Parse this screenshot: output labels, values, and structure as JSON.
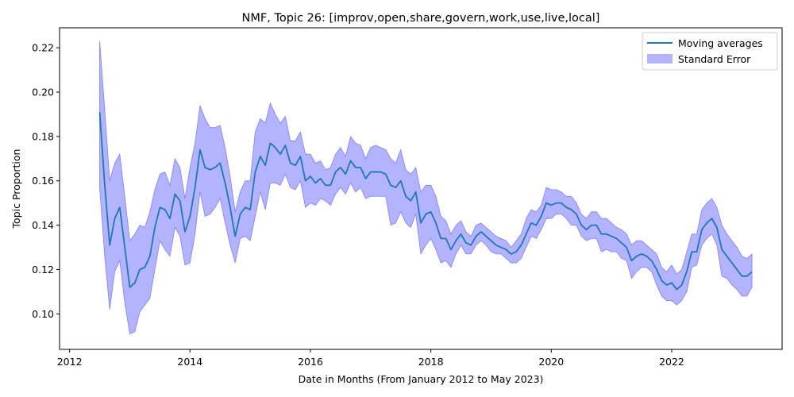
{
  "chart_data": {
    "type": "line",
    "title": "NMF, Topic 26: [improv,open,share,govern,work,use,live,local]",
    "xlabel": "Date in Months (From January 2012 to May 2023)",
    "ylabel": "Topic Proportion",
    "xlim": [
      "2011-11",
      "2023-11"
    ],
    "ylim": [
      0.084,
      0.229
    ],
    "x_ticks": [
      "2012",
      "2014",
      "2016",
      "2018",
      "2020",
      "2022"
    ],
    "y_ticks": [
      "0.10",
      "0.12",
      "0.14",
      "0.16",
      "0.18",
      "0.20",
      "0.22"
    ],
    "grid": false,
    "legend": {
      "position": "top-right",
      "entries": [
        "Moving averages",
        "Standard Error"
      ]
    },
    "colors": {
      "line": "#1f77b4",
      "band": "#b3b3ff",
      "band_edge": "#8080ff"
    },
    "series": [
      {
        "name": "Moving averages",
        "x": [
          "2012-07",
          "2012-08",
          "2012-09",
          "2012-10",
          "2012-11",
          "2012-12",
          "2013-01",
          "2013-02",
          "2013-03",
          "2013-04",
          "2013-05",
          "2013-06",
          "2013-07",
          "2013-08",
          "2013-09",
          "2013-10",
          "2013-11",
          "2013-12",
          "2014-01",
          "2014-02",
          "2014-03",
          "2014-04",
          "2014-05",
          "2014-06",
          "2014-07",
          "2014-08",
          "2014-09",
          "2014-10",
          "2014-11",
          "2014-12",
          "2015-01",
          "2015-02",
          "2015-03",
          "2015-04",
          "2015-05",
          "2015-06",
          "2015-07",
          "2015-08",
          "2015-09",
          "2015-10",
          "2015-11",
          "2015-12",
          "2016-01",
          "2016-02",
          "2016-03",
          "2016-04",
          "2016-05",
          "2016-06",
          "2016-07",
          "2016-08",
          "2016-09",
          "2016-10",
          "2016-11",
          "2016-12",
          "2017-01",
          "2017-02",
          "2017-03",
          "2017-04",
          "2017-05",
          "2017-06",
          "2017-07",
          "2017-08",
          "2017-09",
          "2017-10",
          "2017-11",
          "2017-12",
          "2018-01",
          "2018-02",
          "2018-03",
          "2018-04",
          "2018-05",
          "2018-06",
          "2018-07",
          "2018-08",
          "2018-09",
          "2018-10",
          "2018-11",
          "2018-12",
          "2019-01",
          "2019-02",
          "2019-03",
          "2019-04",
          "2019-05",
          "2019-06",
          "2019-07",
          "2019-08",
          "2019-09",
          "2019-10",
          "2019-11",
          "2019-12",
          "2020-01",
          "2020-02",
          "2020-03",
          "2020-04",
          "2020-05",
          "2020-06",
          "2020-07",
          "2020-08",
          "2020-09",
          "2020-10",
          "2020-11",
          "2020-12",
          "2021-01",
          "2021-02",
          "2021-03",
          "2021-04",
          "2021-05",
          "2021-06",
          "2021-07",
          "2021-08",
          "2021-09",
          "2021-10",
          "2021-11",
          "2021-12",
          "2022-01",
          "2022-02",
          "2022-03",
          "2022-04",
          "2022-05",
          "2022-06",
          "2022-07",
          "2022-08",
          "2022-09",
          "2022-10",
          "2022-11",
          "2022-12",
          "2023-01",
          "2023-02",
          "2023-03",
          "2023-04",
          "2023-05"
        ],
        "values": [
          0.191,
          0.158,
          0.131,
          0.143,
          0.148,
          0.13,
          0.112,
          0.114,
          0.12,
          0.121,
          0.126,
          0.139,
          0.148,
          0.147,
          0.143,
          0.154,
          0.151,
          0.137,
          0.144,
          0.157,
          0.174,
          0.166,
          0.165,
          0.166,
          0.168,
          0.159,
          0.148,
          0.135,
          0.145,
          0.148,
          0.147,
          0.164,
          0.171,
          0.167,
          0.177,
          0.175,
          0.172,
          0.176,
          0.168,
          0.167,
          0.171,
          0.16,
          0.162,
          0.159,
          0.161,
          0.158,
          0.158,
          0.164,
          0.166,
          0.163,
          0.169,
          0.166,
          0.166,
          0.161,
          0.164,
          0.164,
          0.164,
          0.163,
          0.158,
          0.157,
          0.16,
          0.153,
          0.151,
          0.155,
          0.141,
          0.145,
          0.146,
          0.141,
          0.134,
          0.134,
          0.129,
          0.133,
          0.136,
          0.132,
          0.131,
          0.135,
          0.137,
          0.135,
          0.133,
          0.131,
          0.13,
          0.129,
          0.127,
          0.128,
          0.131,
          0.136,
          0.141,
          0.14,
          0.144,
          0.15,
          0.149,
          0.15,
          0.15,
          0.148,
          0.147,
          0.145,
          0.14,
          0.138,
          0.14,
          0.14,
          0.136,
          0.136,
          0.135,
          0.134,
          0.132,
          0.13,
          0.124,
          0.126,
          0.127,
          0.126,
          0.124,
          0.12,
          0.115,
          0.113,
          0.114,
          0.111,
          0.113,
          0.119,
          0.128,
          0.128,
          0.138,
          0.141,
          0.143,
          0.139,
          0.129,
          0.126,
          0.123,
          0.12,
          0.117,
          0.117,
          0.119
        ],
        "lower": [
          0.157,
          0.126,
          0.102,
          0.119,
          0.124,
          0.105,
          0.091,
          0.092,
          0.101,
          0.104,
          0.107,
          0.12,
          0.133,
          0.129,
          0.126,
          0.139,
          0.135,
          0.122,
          0.123,
          0.136,
          0.155,
          0.144,
          0.145,
          0.148,
          0.152,
          0.141,
          0.131,
          0.123,
          0.134,
          0.135,
          0.133,
          0.144,
          0.155,
          0.147,
          0.159,
          0.159,
          0.158,
          0.163,
          0.157,
          0.156,
          0.16,
          0.148,
          0.15,
          0.149,
          0.152,
          0.151,
          0.149,
          0.154,
          0.157,
          0.154,
          0.159,
          0.155,
          0.157,
          0.152,
          0.153,
          0.153,
          0.153,
          0.153,
          0.14,
          0.141,
          0.146,
          0.141,
          0.139,
          0.145,
          0.127,
          0.131,
          0.134,
          0.129,
          0.123,
          0.124,
          0.121,
          0.127,
          0.131,
          0.127,
          0.127,
          0.131,
          0.133,
          0.131,
          0.128,
          0.127,
          0.127,
          0.125,
          0.123,
          0.123,
          0.125,
          0.13,
          0.135,
          0.134,
          0.138,
          0.143,
          0.143,
          0.145,
          0.145,
          0.143,
          0.14,
          0.14,
          0.135,
          0.133,
          0.134,
          0.134,
          0.128,
          0.129,
          0.128,
          0.128,
          0.125,
          0.124,
          0.116,
          0.119,
          0.121,
          0.121,
          0.119,
          0.113,
          0.108,
          0.106,
          0.106,
          0.104,
          0.106,
          0.11,
          0.121,
          0.122,
          0.131,
          0.134,
          0.136,
          0.131,
          0.117,
          0.116,
          0.113,
          0.111,
          0.108,
          0.108,
          0.112
        ],
        "upper": [
          0.223,
          0.192,
          0.16,
          0.168,
          0.172,
          0.153,
          0.133,
          0.136,
          0.14,
          0.139,
          0.146,
          0.156,
          0.163,
          0.164,
          0.158,
          0.17,
          0.166,
          0.152,
          0.166,
          0.177,
          0.194,
          0.188,
          0.184,
          0.184,
          0.185,
          0.175,
          0.162,
          0.146,
          0.155,
          0.16,
          0.16,
          0.182,
          0.188,
          0.186,
          0.195,
          0.19,
          0.186,
          0.189,
          0.178,
          0.178,
          0.182,
          0.172,
          0.172,
          0.168,
          0.169,
          0.165,
          0.166,
          0.172,
          0.175,
          0.171,
          0.18,
          0.177,
          0.176,
          0.17,
          0.175,
          0.176,
          0.175,
          0.174,
          0.17,
          0.168,
          0.174,
          0.165,
          0.163,
          0.166,
          0.155,
          0.158,
          0.158,
          0.153,
          0.144,
          0.142,
          0.136,
          0.14,
          0.142,
          0.137,
          0.135,
          0.14,
          0.141,
          0.139,
          0.137,
          0.135,
          0.134,
          0.133,
          0.13,
          0.133,
          0.136,
          0.143,
          0.147,
          0.146,
          0.149,
          0.157,
          0.156,
          0.156,
          0.155,
          0.153,
          0.153,
          0.15,
          0.145,
          0.143,
          0.146,
          0.146,
          0.143,
          0.143,
          0.141,
          0.139,
          0.138,
          0.136,
          0.131,
          0.133,
          0.133,
          0.131,
          0.129,
          0.127,
          0.121,
          0.119,
          0.122,
          0.118,
          0.12,
          0.128,
          0.136,
          0.136,
          0.147,
          0.15,
          0.152,
          0.148,
          0.14,
          0.136,
          0.133,
          0.13,
          0.126,
          0.125,
          0.127
        ]
      }
    ]
  }
}
